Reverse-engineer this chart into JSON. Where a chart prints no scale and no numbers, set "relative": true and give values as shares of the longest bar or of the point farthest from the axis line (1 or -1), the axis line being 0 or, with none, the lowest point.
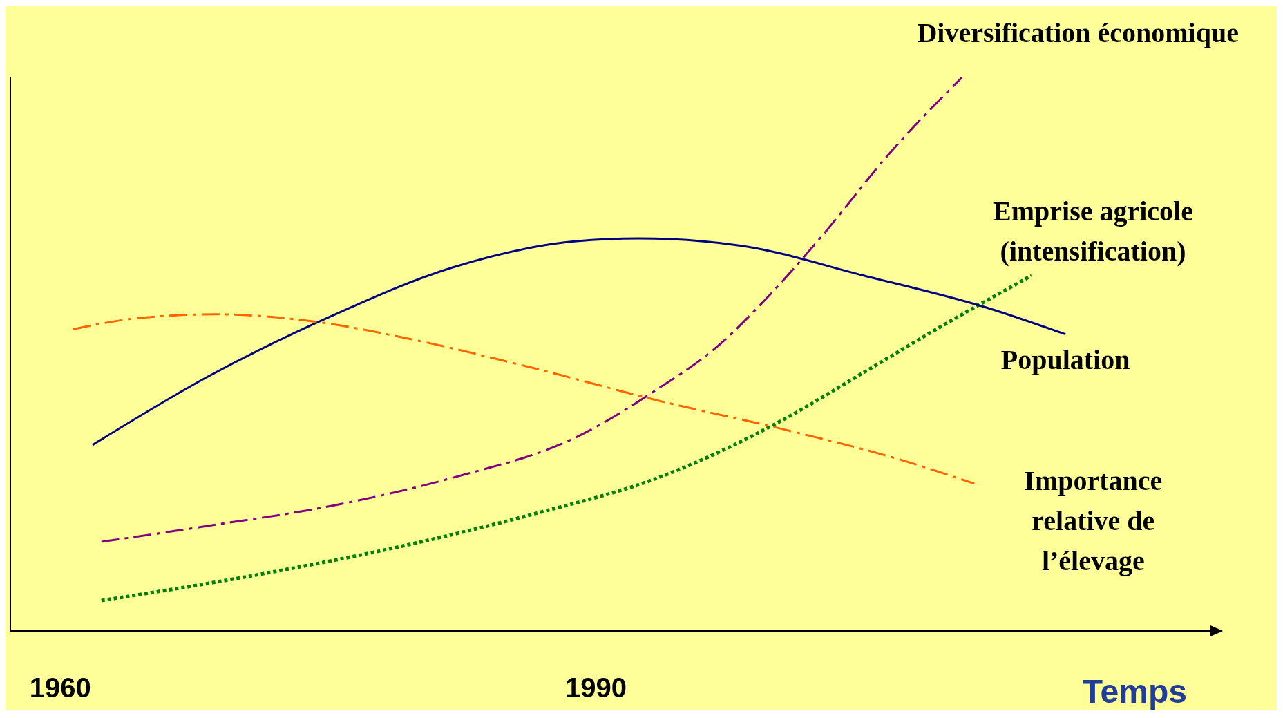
{
  "chart_data": {
    "type": "line",
    "relative": true,
    "xlabel": "Temps",
    "xlim": [
      1957.2,
      2024.5
    ],
    "xticks": [
      1960,
      1990
    ],
    "grid": false,
    "legend": false,
    "marker": "none",
    "series": [
      {
        "name": "Diversification économique",
        "color": "#800080",
        "line_style": "dashed",
        "x": [
          1962.3,
          1968.3,
          1975.2,
          1982.0,
          1988.9,
          1993.5,
          1996.7,
          1999.5,
          2002.7,
          2006.4,
          2010.5
        ],
        "values": [
          0.161,
          0.19,
          0.226,
          0.277,
          0.35,
          0.438,
          0.511,
          0.599,
          0.715,
          0.861,
          1.0
        ]
      },
      {
        "name": "Emprise agricole (intensification)",
        "color": "#008000",
        "line_style": "dotted",
        "x": [
          1962.3,
          1970.6,
          1979.8,
          1986.6,
          1993.5,
          2000.4,
          2005.0,
          2009.6,
          2014.4
        ],
        "values": [
          0.055,
          0.099,
          0.158,
          0.212,
          0.277,
          0.38,
          0.467,
          0.555,
          0.642
        ]
      },
      {
        "name": "Population",
        "color": "#000080",
        "line_style": "solid",
        "x": [
          1961.8,
          1968.3,
          1975.2,
          1982.0,
          1988.9,
          1992.4,
          1998.1,
          2005.0,
          2011.9,
          2016.3
        ],
        "values": [
          0.336,
          0.46,
          0.569,
          0.657,
          0.704,
          0.709,
          0.696,
          0.642,
          0.584,
          0.536
        ]
      },
      {
        "name": "Importance relative  de l’élevage",
        "color": "#ff6600",
        "line_style": "dashed",
        "x": [
          1960.7,
          1964.6,
          1968.7,
          1974.2,
          1979.8,
          1986.6,
          1993.5,
          2000.4,
          2007.3,
          2011.2
        ],
        "values": [
          0.545,
          0.566,
          0.572,
          0.559,
          0.526,
          0.474,
          0.416,
          0.365,
          0.307,
          0.266
        ]
      }
    ]
  }
}
